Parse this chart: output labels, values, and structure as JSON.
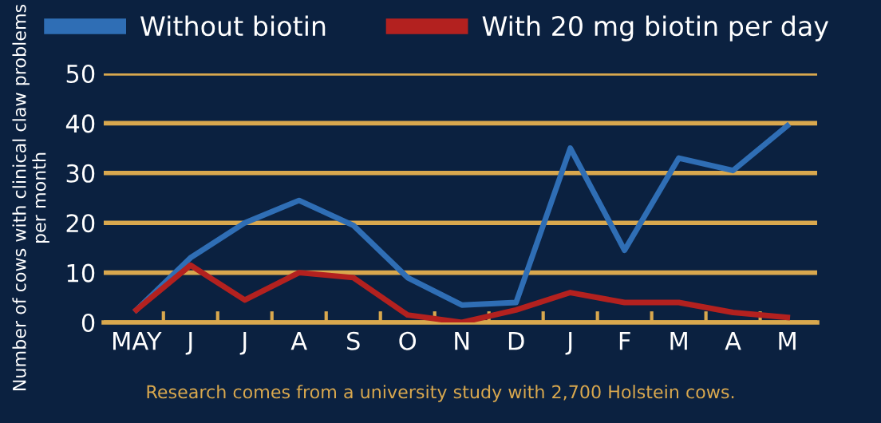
{
  "chart_data": {
    "type": "line",
    "categories": [
      "MAY",
      "J",
      "J",
      "A",
      "S",
      "O",
      "N",
      "D",
      "J",
      "F",
      "M",
      "A",
      "M"
    ],
    "series": [
      {
        "name": "Without biotin",
        "color": "#2f6eb5",
        "values": [
          2.5,
          13,
          20,
          24.5,
          19.5,
          9,
          3.5,
          4,
          35,
          14.5,
          33,
          30.5,
          39.5
        ]
      },
      {
        "name": "With 20 mg biotin per day",
        "color": "#b3211f",
        "values": [
          2.5,
          11.5,
          4.5,
          10,
          9,
          1.5,
          0,
          2.5,
          6,
          4,
          4,
          2,
          1
        ]
      }
    ],
    "ylabel": "Number of cows with clinical claw problems per month",
    "ylim": [
      0,
      50
    ],
    "yticks": [
      0,
      10,
      20,
      30,
      40,
      50
    ],
    "grid": "y",
    "legend": "top",
    "marker": "none",
    "line_style": "solid",
    "annotations": [
      "Research comes from a university study with 2,700 Holstein cows."
    ]
  }
}
